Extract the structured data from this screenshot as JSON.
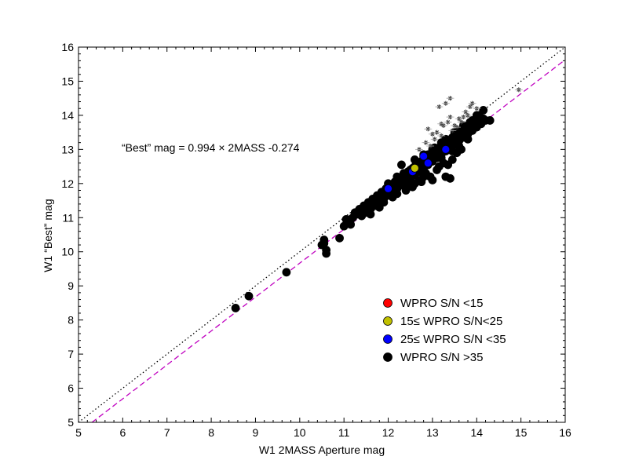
{
  "chart_data": {
    "type": "scatter",
    "title": "",
    "xlabel": "W1 2MASS Aperture mag",
    "ylabel": "W1 “Best” mag",
    "xlim": [
      5,
      16
    ],
    "ylim": [
      5,
      16
    ],
    "xticks": [
      "5",
      "6",
      "7",
      "8",
      "9",
      "10",
      "11",
      "12",
      "13",
      "14",
      "15",
      "16"
    ],
    "yticks": [
      "5",
      "6",
      "7",
      "8",
      "9",
      "10",
      "11",
      "12",
      "13",
      "14",
      "15",
      "16"
    ],
    "grid": false,
    "legend_position": "lower-right",
    "annotation": "“Best” mag = 0.994 × 2MASS -0.274",
    "fit_line": {
      "slope": 0.994,
      "intercept": -0.274,
      "color": "#c000c0",
      "style": "dashed"
    },
    "identity_line": {
      "slope": 1,
      "intercept": 0,
      "color": "#000000",
      "style": "dotted"
    },
    "legend": [
      {
        "label": "WPRO S/N <15",
        "color": "#ff0000"
      },
      {
        "label": "15≤ WPRO S/N<25",
        "color": "#c0c000"
      },
      {
        "label": "25≤ WPRO S/N <35",
        "color": "#0000ff"
      },
      {
        "label": "WPRO S/N >35",
        "color": "#000000"
      }
    ],
    "series": [
      {
        "color": "#000000",
        "marker": "circle",
        "points": [
          [
            8.55,
            8.35
          ],
          [
            8.85,
            8.7
          ],
          [
            9.7,
            9.4
          ],
          [
            10.5,
            10.2
          ],
          [
            10.55,
            10.35
          ],
          [
            10.6,
            10.05
          ],
          [
            10.6,
            9.95
          ],
          [
            10.55,
            10.25
          ],
          [
            10.9,
            10.4
          ],
          [
            11.0,
            10.75
          ],
          [
            11.1,
            10.85
          ],
          [
            11.15,
            10.8
          ],
          [
            11.2,
            11.0
          ],
          [
            11.3,
            11.1
          ],
          [
            11.4,
            11.05
          ],
          [
            11.45,
            11.2
          ],
          [
            11.5,
            11.15
          ],
          [
            11.55,
            11.3
          ],
          [
            11.6,
            11.25
          ],
          [
            11.65,
            11.4
          ],
          [
            11.7,
            11.35
          ],
          [
            11.75,
            11.5
          ],
          [
            11.8,
            11.45
          ],
          [
            11.85,
            11.6
          ],
          [
            11.9,
            11.55
          ],
          [
            11.95,
            11.7
          ],
          [
            12.0,
            11.65
          ],
          [
            12.05,
            11.8
          ],
          [
            12.1,
            11.75
          ],
          [
            12.15,
            11.9
          ],
          [
            12.2,
            11.85
          ],
          [
            12.25,
            12.0
          ],
          [
            12.3,
            11.95
          ],
          [
            12.35,
            12.1
          ],
          [
            12.4,
            12.05
          ],
          [
            12.45,
            12.2
          ],
          [
            12.5,
            12.15
          ],
          [
            12.55,
            12.3
          ],
          [
            12.6,
            12.25
          ],
          [
            12.65,
            12.4
          ],
          [
            12.7,
            12.35
          ],
          [
            12.75,
            12.5
          ],
          [
            12.8,
            12.45
          ],
          [
            12.85,
            12.6
          ],
          [
            12.9,
            12.55
          ],
          [
            12.95,
            12.7
          ],
          [
            13.0,
            12.65
          ],
          [
            13.05,
            12.8
          ],
          [
            13.1,
            12.75
          ],
          [
            13.15,
            12.9
          ],
          [
            13.2,
            12.85
          ],
          [
            13.25,
            13.0
          ],
          [
            13.3,
            12.95
          ],
          [
            13.35,
            13.1
          ],
          [
            13.4,
            13.05
          ],
          [
            13.45,
            13.2
          ],
          [
            13.5,
            13.15
          ],
          [
            13.55,
            13.3
          ],
          [
            13.6,
            13.25
          ],
          [
            13.65,
            13.4
          ],
          [
            13.7,
            13.35
          ],
          [
            13.75,
            13.5
          ],
          [
            13.8,
            13.45
          ],
          [
            13.85,
            13.6
          ],
          [
            13.9,
            13.55
          ],
          [
            13.95,
            13.7
          ],
          [
            14.0,
            13.65
          ],
          [
            14.05,
            13.8
          ],
          [
            14.1,
            13.75
          ],
          [
            14.15,
            13.9
          ],
          [
            14.2,
            13.85
          ],
          [
            14.3,
            13.85
          ],
          [
            14.15,
            14.15
          ],
          [
            14.05,
            14.0
          ],
          [
            13.9,
            13.85
          ],
          [
            13.75,
            13.65
          ],
          [
            13.6,
            13.55
          ],
          [
            12.3,
            12.55
          ],
          [
            12.6,
            12.7
          ],
          [
            12.8,
            12.85
          ],
          [
            13.0,
            13.0
          ],
          [
            13.2,
            13.2
          ],
          [
            12.75,
            12.05
          ],
          [
            12.6,
            12.0
          ],
          [
            13.0,
            12.1
          ],
          [
            13.1,
            12.4
          ],
          [
            12.95,
            12.2
          ],
          [
            12.85,
            12.3
          ],
          [
            13.3,
            12.2
          ],
          [
            13.4,
            12.15
          ],
          [
            13.25,
            12.6
          ],
          [
            13.15,
            12.5
          ],
          [
            13.45,
            12.7
          ],
          [
            13.55,
            12.9
          ],
          [
            13.65,
            13.0
          ],
          [
            12.45,
            11.95
          ],
          [
            12.5,
            12.4
          ],
          [
            12.2,
            11.7
          ],
          [
            12.1,
            11.6
          ],
          [
            11.9,
            11.45
          ],
          [
            11.8,
            11.3
          ],
          [
            11.6,
            11.1
          ],
          [
            12.0,
            12.0
          ],
          [
            12.2,
            12.2
          ],
          [
            12.35,
            12.3
          ],
          [
            12.7,
            12.6
          ],
          [
            12.9,
            12.85
          ],
          [
            13.05,
            13.05
          ],
          [
            13.3,
            13.3
          ],
          [
            13.5,
            13.5
          ],
          [
            13.7,
            13.7
          ],
          [
            13.85,
            13.8
          ],
          [
            14.0,
            14.0
          ],
          [
            11.05,
            10.95
          ],
          [
            11.25,
            11.15
          ],
          [
            11.35,
            11.25
          ],
          [
            11.45,
            11.35
          ],
          [
            11.55,
            11.45
          ],
          [
            11.65,
            11.55
          ],
          [
            11.75,
            11.65
          ],
          [
            11.85,
            11.75
          ],
          [
            11.95,
            11.85
          ],
          [
            12.05,
            11.95
          ],
          [
            12.15,
            12.05
          ],
          [
            12.25,
            12.15
          ],
          [
            12.35,
            12.25
          ],
          [
            12.45,
            12.35
          ],
          [
            12.55,
            12.45
          ],
          [
            12.65,
            12.55
          ],
          [
            12.75,
            12.65
          ],
          [
            12.85,
            12.75
          ],
          [
            12.95,
            12.85
          ],
          [
            13.05,
            12.95
          ],
          [
            13.15,
            13.05
          ],
          [
            13.25,
            13.15
          ],
          [
            13.35,
            13.25
          ],
          [
            13.45,
            13.35
          ],
          [
            13.55,
            13.45
          ],
          [
            13.65,
            13.55
          ],
          [
            13.75,
            13.65
          ],
          [
            11.15,
            10.95
          ],
          [
            11.5,
            11.3
          ],
          [
            11.7,
            11.55
          ],
          [
            12.0,
            11.85
          ],
          [
            12.3,
            12.2
          ],
          [
            12.6,
            12.5
          ],
          [
            12.9,
            12.75
          ],
          [
            13.2,
            13.1
          ],
          [
            13.5,
            13.4
          ],
          [
            12.4,
            11.8
          ],
          [
            12.55,
            11.9
          ],
          [
            12.7,
            12.1
          ],
          [
            12.8,
            12.2
          ],
          [
            13.35,
            12.55
          ],
          [
            13.2,
            12.75
          ],
          [
            13.45,
            12.95
          ],
          [
            13.6,
            13.1
          ],
          [
            13.8,
            13.3
          ]
        ]
      },
      {
        "color": "#0000ff",
        "marker": "circle",
        "points": [
          [
            12.0,
            11.85
          ],
          [
            12.55,
            12.35
          ],
          [
            12.8,
            12.8
          ],
          [
            12.9,
            12.6
          ],
          [
            13.3,
            13.0
          ]
        ]
      },
      {
        "color": "#c0c000",
        "marker": "circle",
        "points": [
          [
            12.6,
            12.45
          ]
        ]
      },
      {
        "color": "#888888",
        "marker": "star",
        "points": [
          [
            13.15,
            14.25
          ],
          [
            13.4,
            14.5
          ],
          [
            13.3,
            14.35
          ],
          [
            13.9,
            14.35
          ],
          [
            14.0,
            14.2
          ],
          [
            14.95,
            14.75
          ],
          [
            12.9,
            13.6
          ],
          [
            13.1,
            13.5
          ],
          [
            13.2,
            13.4
          ],
          [
            13.35,
            13.8
          ],
          [
            13.5,
            13.7
          ],
          [
            13.6,
            13.9
          ],
          [
            13.7,
            13.95
          ],
          [
            13.8,
            14.0
          ],
          [
            13.25,
            13.7
          ],
          [
            13.45,
            13.55
          ],
          [
            13.0,
            13.45
          ],
          [
            13.55,
            13.65
          ],
          [
            13.65,
            13.8
          ],
          [
            13.75,
            14.1
          ],
          [
            12.7,
            13.0
          ],
          [
            12.85,
            13.2
          ],
          [
            12.95,
            13.1
          ],
          [
            13.05,
            13.3
          ],
          [
            13.4,
            13.95
          ],
          [
            13.85,
            14.25
          ],
          [
            13.2,
            13.75
          ]
        ]
      }
    ]
  }
}
